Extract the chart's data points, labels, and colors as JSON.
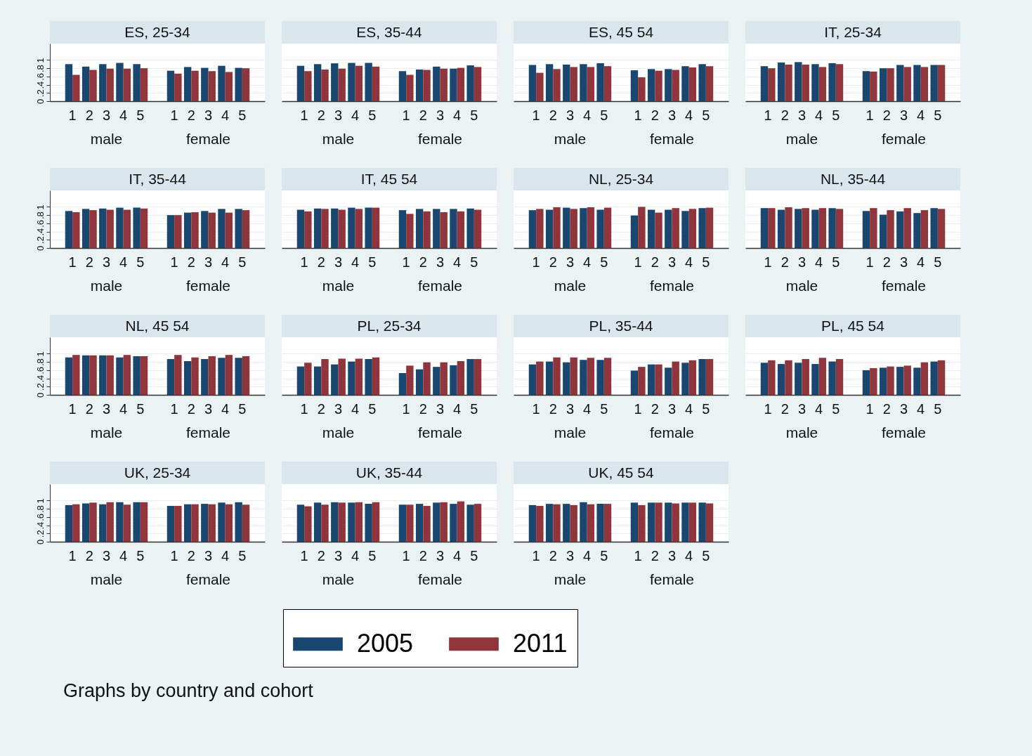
{
  "chart_data": [
    {
      "type": "bar",
      "title": "ES, 25-34",
      "categories": [
        "1",
        "2",
        "3",
        "4",
        "5",
        null,
        "1",
        "2",
        "3",
        "4",
        "5"
      ],
      "annotations": [
        "male",
        "female"
      ],
      "ylim": [
        0,
        1.4
      ],
      "yticks": [
        0,
        {
          "value": 0.2,
          "label": ".2"
        },
        {
          "value": 0.4,
          "label": ".4"
        },
        {
          "value": 0.6,
          "label": ".6"
        },
        {
          "value": 0.8,
          "label": ".8"
        },
        1
      ],
      "grid": "y",
      "legend": "bottom",
      "series": [
        {
          "name": "2005",
          "color": "#1a476f",
          "values": [
            0.9,
            0.84,
            0.9,
            0.93,
            0.9,
            null,
            0.74,
            0.83,
            0.81,
            0.86,
            0.81
          ]
        },
        {
          "name": "2011",
          "color": "#90353b",
          "values": [
            0.64,
            0.76,
            0.79,
            0.79,
            0.8,
            null,
            0.67,
            0.74,
            0.73,
            0.71,
            0.8
          ]
        }
      ]
    },
    {
      "type": "bar",
      "title": "ES, 35-44",
      "categories": [
        "1",
        "2",
        "3",
        "4",
        "5",
        null,
        "1",
        "2",
        "3",
        "4",
        "5"
      ],
      "annotations": [
        "male",
        "female"
      ],
      "ylim": [
        0,
        1.4
      ],
      "yticks": [
        0,
        0.2,
        0.4,
        0.6,
        0.8,
        1
      ],
      "grid": "y",
      "tick_labels": "x",
      "series": [
        {
          "name": "2005",
          "color": "#1a476f",
          "values": [
            0.86,
            0.9,
            0.92,
            0.93,
            0.93,
            null,
            0.73,
            0.77,
            0.84,
            0.79,
            0.87
          ]
        },
        {
          "name": "2011",
          "color": "#90353b",
          "values": [
            0.73,
            0.77,
            0.79,
            0.86,
            0.84,
            null,
            0.64,
            0.76,
            0.79,
            0.81,
            0.83
          ]
        }
      ]
    },
    {
      "type": "bar",
      "title": "ES, 45 54",
      "categories": [
        "1",
        "2",
        "3",
        "4",
        "5",
        null,
        "1",
        "2",
        "3",
        "4",
        "5"
      ],
      "annotations": [
        "male",
        "female"
      ],
      "ylim": [
        0,
        1.4
      ],
      "yticks": [
        0,
        0.2,
        0.4,
        0.6,
        0.8,
        1
      ],
      "grid": "y",
      "tick_labels": "x",
      "series": [
        {
          "name": "2005",
          "color": "#1a476f",
          "values": [
            0.88,
            0.9,
            0.89,
            0.9,
            0.92,
            null,
            0.75,
            0.78,
            0.78,
            0.85,
            0.9
          ]
        },
        {
          "name": "2011",
          "color": "#90353b",
          "values": [
            0.69,
            0.78,
            0.83,
            0.83,
            0.85,
            null,
            0.58,
            0.74,
            0.76,
            0.82,
            0.85
          ]
        }
      ]
    },
    {
      "type": "bar",
      "title": "IT, 25-34",
      "categories": [
        "1",
        "2",
        "3",
        "4",
        "5",
        null,
        "1",
        "2",
        "3",
        "4",
        "5"
      ],
      "annotations": [
        "male",
        "female"
      ],
      "ylim": [
        0,
        1.4
      ],
      "yticks": [
        0,
        0.2,
        0.4,
        0.6,
        0.8,
        1
      ],
      "grid": "y",
      "tick_labels": "x",
      "series": [
        {
          "name": "2005",
          "color": "#1a476f",
          "values": [
            0.85,
            0.94,
            0.95,
            0.9,
            0.92,
            null,
            0.73,
            0.8,
            0.88,
            0.88,
            0.88
          ]
        },
        {
          "name": "2011",
          "color": "#90353b",
          "values": [
            0.8,
            0.89,
            0.89,
            0.83,
            0.9,
            null,
            0.72,
            0.8,
            0.83,
            0.83,
            0.88
          ]
        }
      ]
    },
    {
      "type": "bar",
      "title": "IT, 35-44",
      "categories": [
        "1",
        "2",
        "3",
        "4",
        "5",
        null,
        "1",
        "2",
        "3",
        "4",
        "5"
      ],
      "annotations": [
        "male",
        "female"
      ],
      "ylim": [
        0,
        1.4
      ],
      "yticks": [
        0,
        {
          "value": 0.2,
          "label": ".2"
        },
        {
          "value": 0.4,
          "label": ".4"
        },
        {
          "value": 0.6,
          "label": ".6"
        },
        {
          "value": 0.8,
          "label": ".8"
        },
        1
      ],
      "grid": "y",
      "series": [
        {
          "name": "2005",
          "color": "#1a476f",
          "values": [
            0.9,
            0.95,
            0.96,
            0.98,
            0.98,
            null,
            0.8,
            0.86,
            0.9,
            0.95,
            0.95
          ]
        },
        {
          "name": "2011",
          "color": "#90353b",
          "values": [
            0.87,
            0.92,
            0.93,
            0.93,
            0.96,
            null,
            0.8,
            0.87,
            0.86,
            0.86,
            0.92
          ]
        }
      ]
    },
    {
      "type": "bar",
      "title": "IT, 45 54",
      "categories": [
        "1",
        "2",
        "3",
        "4",
        "5",
        null,
        "1",
        "2",
        "3",
        "4",
        "5"
      ],
      "annotations": [
        "male",
        "female"
      ],
      "ylim": [
        0,
        1.4
      ],
      "yticks": [
        0,
        0.2,
        0.4,
        0.6,
        0.8,
        1
      ],
      "grid": "y",
      "tick_labels": "x",
      "series": [
        {
          "name": "2005",
          "color": "#1a476f",
          "values": [
            0.93,
            0.96,
            0.96,
            0.98,
            0.98,
            null,
            0.92,
            0.95,
            0.95,
            0.95,
            0.96
          ]
        },
        {
          "name": "2011",
          "color": "#90353b",
          "values": [
            0.89,
            0.95,
            0.93,
            0.95,
            0.98,
            null,
            0.83,
            0.89,
            0.87,
            0.89,
            0.93
          ]
        }
      ]
    },
    {
      "type": "bar",
      "title": "NL, 25-34",
      "categories": [
        "1",
        "2",
        "3",
        "4",
        "5",
        null,
        "1",
        "2",
        "3",
        "4",
        "5"
      ],
      "annotations": [
        "male",
        "female"
      ],
      "ylim": [
        0,
        1.4
      ],
      "yticks": [
        0,
        0.2,
        0.4,
        0.6,
        0.8,
        1
      ],
      "grid": "y",
      "tick_labels": "x",
      "series": [
        {
          "name": "2005",
          "color": "#1a476f",
          "values": [
            0.92,
            0.93,
            0.98,
            0.97,
            0.93,
            null,
            0.79,
            0.93,
            0.93,
            0.9,
            0.97
          ]
        },
        {
          "name": "2011",
          "color": "#90353b",
          "values": [
            0.95,
            0.99,
            0.95,
            0.99,
            0.98,
            null,
            1.0,
            0.86,
            0.97,
            0.95,
            0.98
          ]
        }
      ]
    },
    {
      "type": "bar",
      "title": "NL, 35-44",
      "categories": [
        "1",
        "2",
        "3",
        "4",
        "5",
        null,
        "1",
        "2",
        "3",
        "4",
        "5"
      ],
      "annotations": [
        "male",
        "female"
      ],
      "ylim": [
        0,
        1.4
      ],
      "yticks": [
        0,
        0.2,
        0.4,
        0.6,
        0.8,
        1
      ],
      "grid": "y",
      "tick_labels": "x",
      "series": [
        {
          "name": "2005",
          "color": "#1a476f",
          "values": [
            0.97,
            0.93,
            0.95,
            0.93,
            0.97,
            null,
            0.9,
            0.81,
            0.89,
            0.85,
            0.97
          ]
        },
        {
          "name": "2011",
          "color": "#90353b",
          "values": [
            0.97,
            0.99,
            0.97,
            0.97,
            0.95,
            null,
            0.97,
            0.92,
            0.97,
            0.92,
            0.95
          ]
        }
      ]
    },
    {
      "type": "bar",
      "title": "NL, 45 54",
      "categories": [
        "1",
        "2",
        "3",
        "4",
        "5",
        null,
        "1",
        "2",
        "3",
        "4",
        "5"
      ],
      "annotations": [
        "male",
        "female"
      ],
      "ylim": [
        0,
        1.4
      ],
      "yticks": [
        0,
        {
          "value": 0.2,
          "label": ".2"
        },
        {
          "value": 0.4,
          "label": ".4"
        },
        {
          "value": 0.6,
          "label": ".6"
        },
        {
          "value": 0.8,
          "label": ".8"
        },
        1
      ],
      "grid": "y",
      "series": [
        {
          "name": "2005",
          "color": "#1a476f",
          "values": [
            0.91,
            0.96,
            0.96,
            0.91,
            0.94,
            null,
            0.87,
            0.82,
            0.87,
            0.9,
            0.9
          ]
        },
        {
          "name": "2011",
          "color": "#90353b",
          "values": [
            0.97,
            0.96,
            0.96,
            0.97,
            0.94,
            null,
            0.97,
            0.91,
            0.94,
            0.97,
            0.94
          ]
        }
      ]
    },
    {
      "type": "bar",
      "title": "PL, 25-34",
      "categories": [
        "1",
        "2",
        "3",
        "4",
        "5",
        null,
        "1",
        "2",
        "3",
        "4",
        "5"
      ],
      "annotations": [
        "male",
        "female"
      ],
      "ylim": [
        0,
        1.4
      ],
      "yticks": [
        0,
        0.2,
        0.4,
        0.6,
        0.8,
        1
      ],
      "grid": "y",
      "tick_labels": "x",
      "series": [
        {
          "name": "2005",
          "color": "#1a476f",
          "values": [
            0.69,
            0.69,
            0.74,
            0.81,
            0.87,
            null,
            0.53,
            0.62,
            0.68,
            0.72,
            0.87
          ]
        },
        {
          "name": "2011",
          "color": "#90353b",
          "values": [
            0.78,
            0.87,
            0.88,
            0.88,
            0.91,
            null,
            0.71,
            0.79,
            0.79,
            0.82,
            0.87
          ]
        }
      ]
    },
    {
      "type": "bar",
      "title": "PL, 35-44",
      "categories": [
        "1",
        "2",
        "3",
        "4",
        "5",
        null,
        "1",
        "2",
        "3",
        "4",
        "5"
      ],
      "annotations": [
        "male",
        "female"
      ],
      "ylim": [
        0,
        1.4
      ],
      "yticks": [
        0,
        0.2,
        0.4,
        0.6,
        0.8,
        1
      ],
      "grid": "y",
      "tick_labels": "x",
      "series": [
        {
          "name": "2005",
          "color": "#1a476f",
          "values": [
            0.74,
            0.81,
            0.79,
            0.85,
            0.85,
            null,
            0.59,
            0.74,
            0.66,
            0.78,
            0.87
          ]
        },
        {
          "name": "2011",
          "color": "#90353b",
          "values": [
            0.81,
            0.91,
            0.91,
            0.9,
            0.9,
            null,
            0.68,
            0.74,
            0.81,
            0.84,
            0.87
          ]
        }
      ]
    },
    {
      "type": "bar",
      "title": "PL, 45 54",
      "categories": [
        "1",
        "2",
        "3",
        "4",
        "5",
        null,
        "1",
        "2",
        "3",
        "4",
        "5"
      ],
      "annotations": [
        "male",
        "female"
      ],
      "ylim": [
        0,
        1.4
      ],
      "yticks": [
        0,
        0.2,
        0.4,
        0.6,
        0.8,
        1
      ],
      "grid": "y",
      "tick_labels": "x",
      "series": [
        {
          "name": "2005",
          "color": "#1a476f",
          "values": [
            0.78,
            0.75,
            0.78,
            0.75,
            0.81,
            null,
            0.6,
            0.66,
            0.68,
            0.66,
            0.81
          ]
        },
        {
          "name": "2011",
          "color": "#90353b",
          "values": [
            0.84,
            0.84,
            0.87,
            0.9,
            0.87,
            null,
            0.65,
            0.69,
            0.71,
            0.79,
            0.84
          ]
        }
      ]
    },
    {
      "type": "bar",
      "title": "UK, 25-34",
      "categories": [
        "1",
        "2",
        "3",
        "4",
        "5",
        null,
        "1",
        "2",
        "3",
        "4",
        "5"
      ],
      "annotations": [
        "male",
        "female"
      ],
      "ylim": [
        0,
        1.4
      ],
      "yticks": [
        0,
        {
          "value": 0.2,
          "label": ".2"
        },
        {
          "value": 0.4,
          "label": ".4"
        },
        {
          "value": 0.6,
          "label": ".6"
        },
        {
          "value": 0.8,
          "label": ".8"
        },
        1
      ],
      "grid": "y",
      "series": [
        {
          "name": "2005",
          "color": "#1a476f",
          "values": [
            0.89,
            0.93,
            0.91,
            0.96,
            0.96,
            null,
            0.87,
            0.91,
            0.92,
            0.95,
            0.96
          ]
        },
        {
          "name": "2011",
          "color": "#90353b",
          "values": [
            0.91,
            0.95,
            0.96,
            0.9,
            0.96,
            null,
            0.87,
            0.91,
            0.91,
            0.91,
            0.9
          ]
        }
      ]
    },
    {
      "type": "bar",
      "title": "UK, 35-44",
      "categories": [
        "1",
        "2",
        "3",
        "4",
        "5",
        null,
        "1",
        "2",
        "3",
        "4",
        "5"
      ],
      "annotations": [
        "male",
        "female"
      ],
      "ylim": [
        0,
        1.4
      ],
      "yticks": [
        0,
        0.2,
        0.4,
        0.6,
        0.8,
        1
      ],
      "grid": "y",
      "tick_labels": "x",
      "series": [
        {
          "name": "2005",
          "color": "#1a476f",
          "values": [
            0.9,
            0.95,
            0.96,
            0.95,
            0.92,
            null,
            0.9,
            0.92,
            0.95,
            0.92,
            0.9
          ]
        },
        {
          "name": "2011",
          "color": "#90353b",
          "values": [
            0.86,
            0.9,
            0.95,
            0.96,
            0.96,
            null,
            0.9,
            0.87,
            0.96,
            0.98,
            0.92
          ]
        }
      ]
    },
    {
      "type": "bar",
      "title": "UK, 45 54",
      "categories": [
        "1",
        "2",
        "3",
        "4",
        "5",
        null,
        "1",
        "2",
        "3",
        "4",
        "5"
      ],
      "annotations": [
        "male",
        "female",
        "Graphs by country and cohort"
      ],
      "ylim": [
        0,
        1.4
      ],
      "yticks": [
        0,
        0.2,
        0.4,
        0.6,
        0.8,
        1
      ],
      "grid": "y",
      "tick_labels": "x",
      "series": [
        {
          "name": "2005",
          "color": "#1a476f",
          "values": [
            0.89,
            0.92,
            0.92,
            0.96,
            0.92,
            null,
            0.95,
            0.95,
            0.95,
            0.95,
            0.95
          ]
        },
        {
          "name": "2011",
          "color": "#90353b",
          "values": [
            0.87,
            0.91,
            0.89,
            0.91,
            0.92,
            null,
            0.89,
            0.95,
            0.93,
            0.95,
            0.93
          ]
        }
      ]
    }
  ]
}
